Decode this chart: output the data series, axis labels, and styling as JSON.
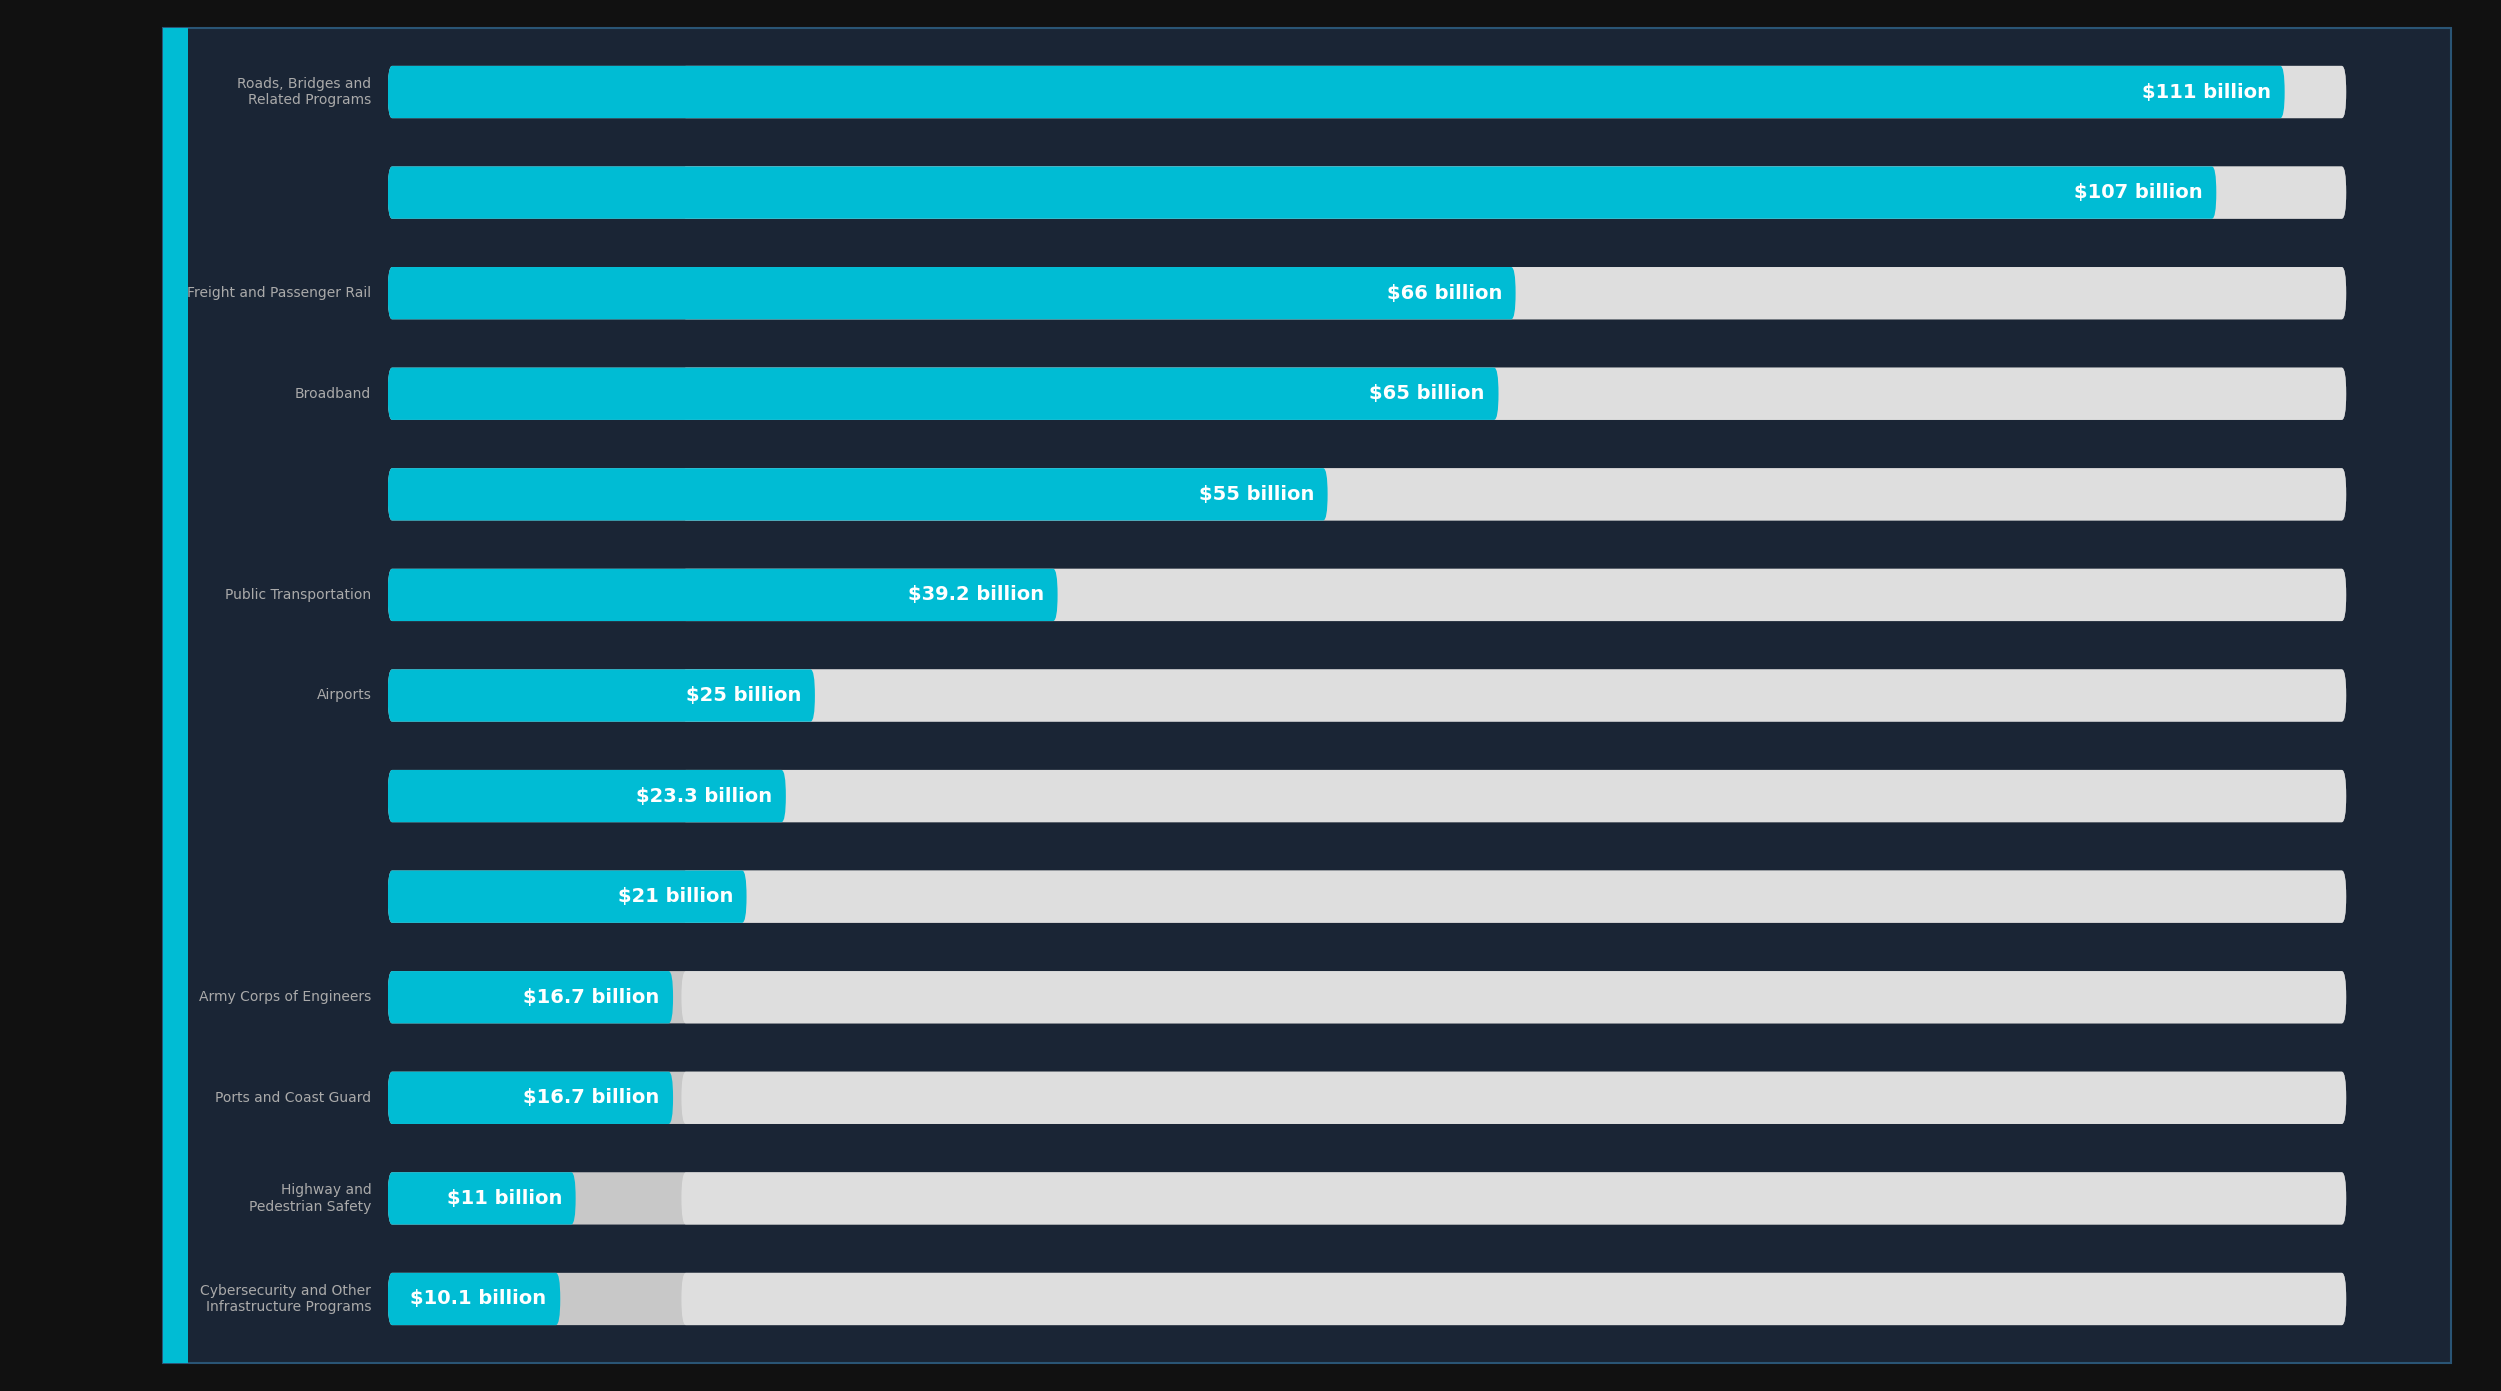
{
  "categories": [
    "Roads, Bridges and\nRelated Programs",
    "",
    "Freight and Passenger Rail",
    "Broadband",
    "",
    "Public Transportation",
    "Airports",
    "",
    "",
    "Army Corps of Engineers",
    "Ports and Coast Guard",
    "Highway and\nPedestrian Safety",
    "Cybersecurity and Other\nInfrastructure Programs"
  ],
  "values": [
    111,
    107,
    66,
    65,
    55,
    39.2,
    25,
    23.3,
    21,
    16.7,
    16.7,
    11,
    10.1
  ],
  "labels": [
    "$111 billion",
    "$107 billion",
    "$66 billion",
    "$65 billion",
    "$55 billion",
    "$39.2 billion",
    "$25 billion",
    "$23.3 billion",
    "$21 billion",
    "$16.7 billion",
    "$16.7 billion",
    "$11 billion",
    "$10.1 billion"
  ],
  "max_value": 120,
  "bar_color": "#00BCD4",
  "outer_bg": "#111111",
  "panel_bg": "#1a2535",
  "panel_border": "#2a5575",
  "cyan_strip": "#00BCD4",
  "text_color": "#aaaaaa",
  "label_text_color": "#ffffff",
  "bg_bar_color": "#d5d5d5",
  "font_size_label": 14,
  "font_size_category": 10,
  "bar_height": 0.52,
  "bar_spacing": 1.0
}
